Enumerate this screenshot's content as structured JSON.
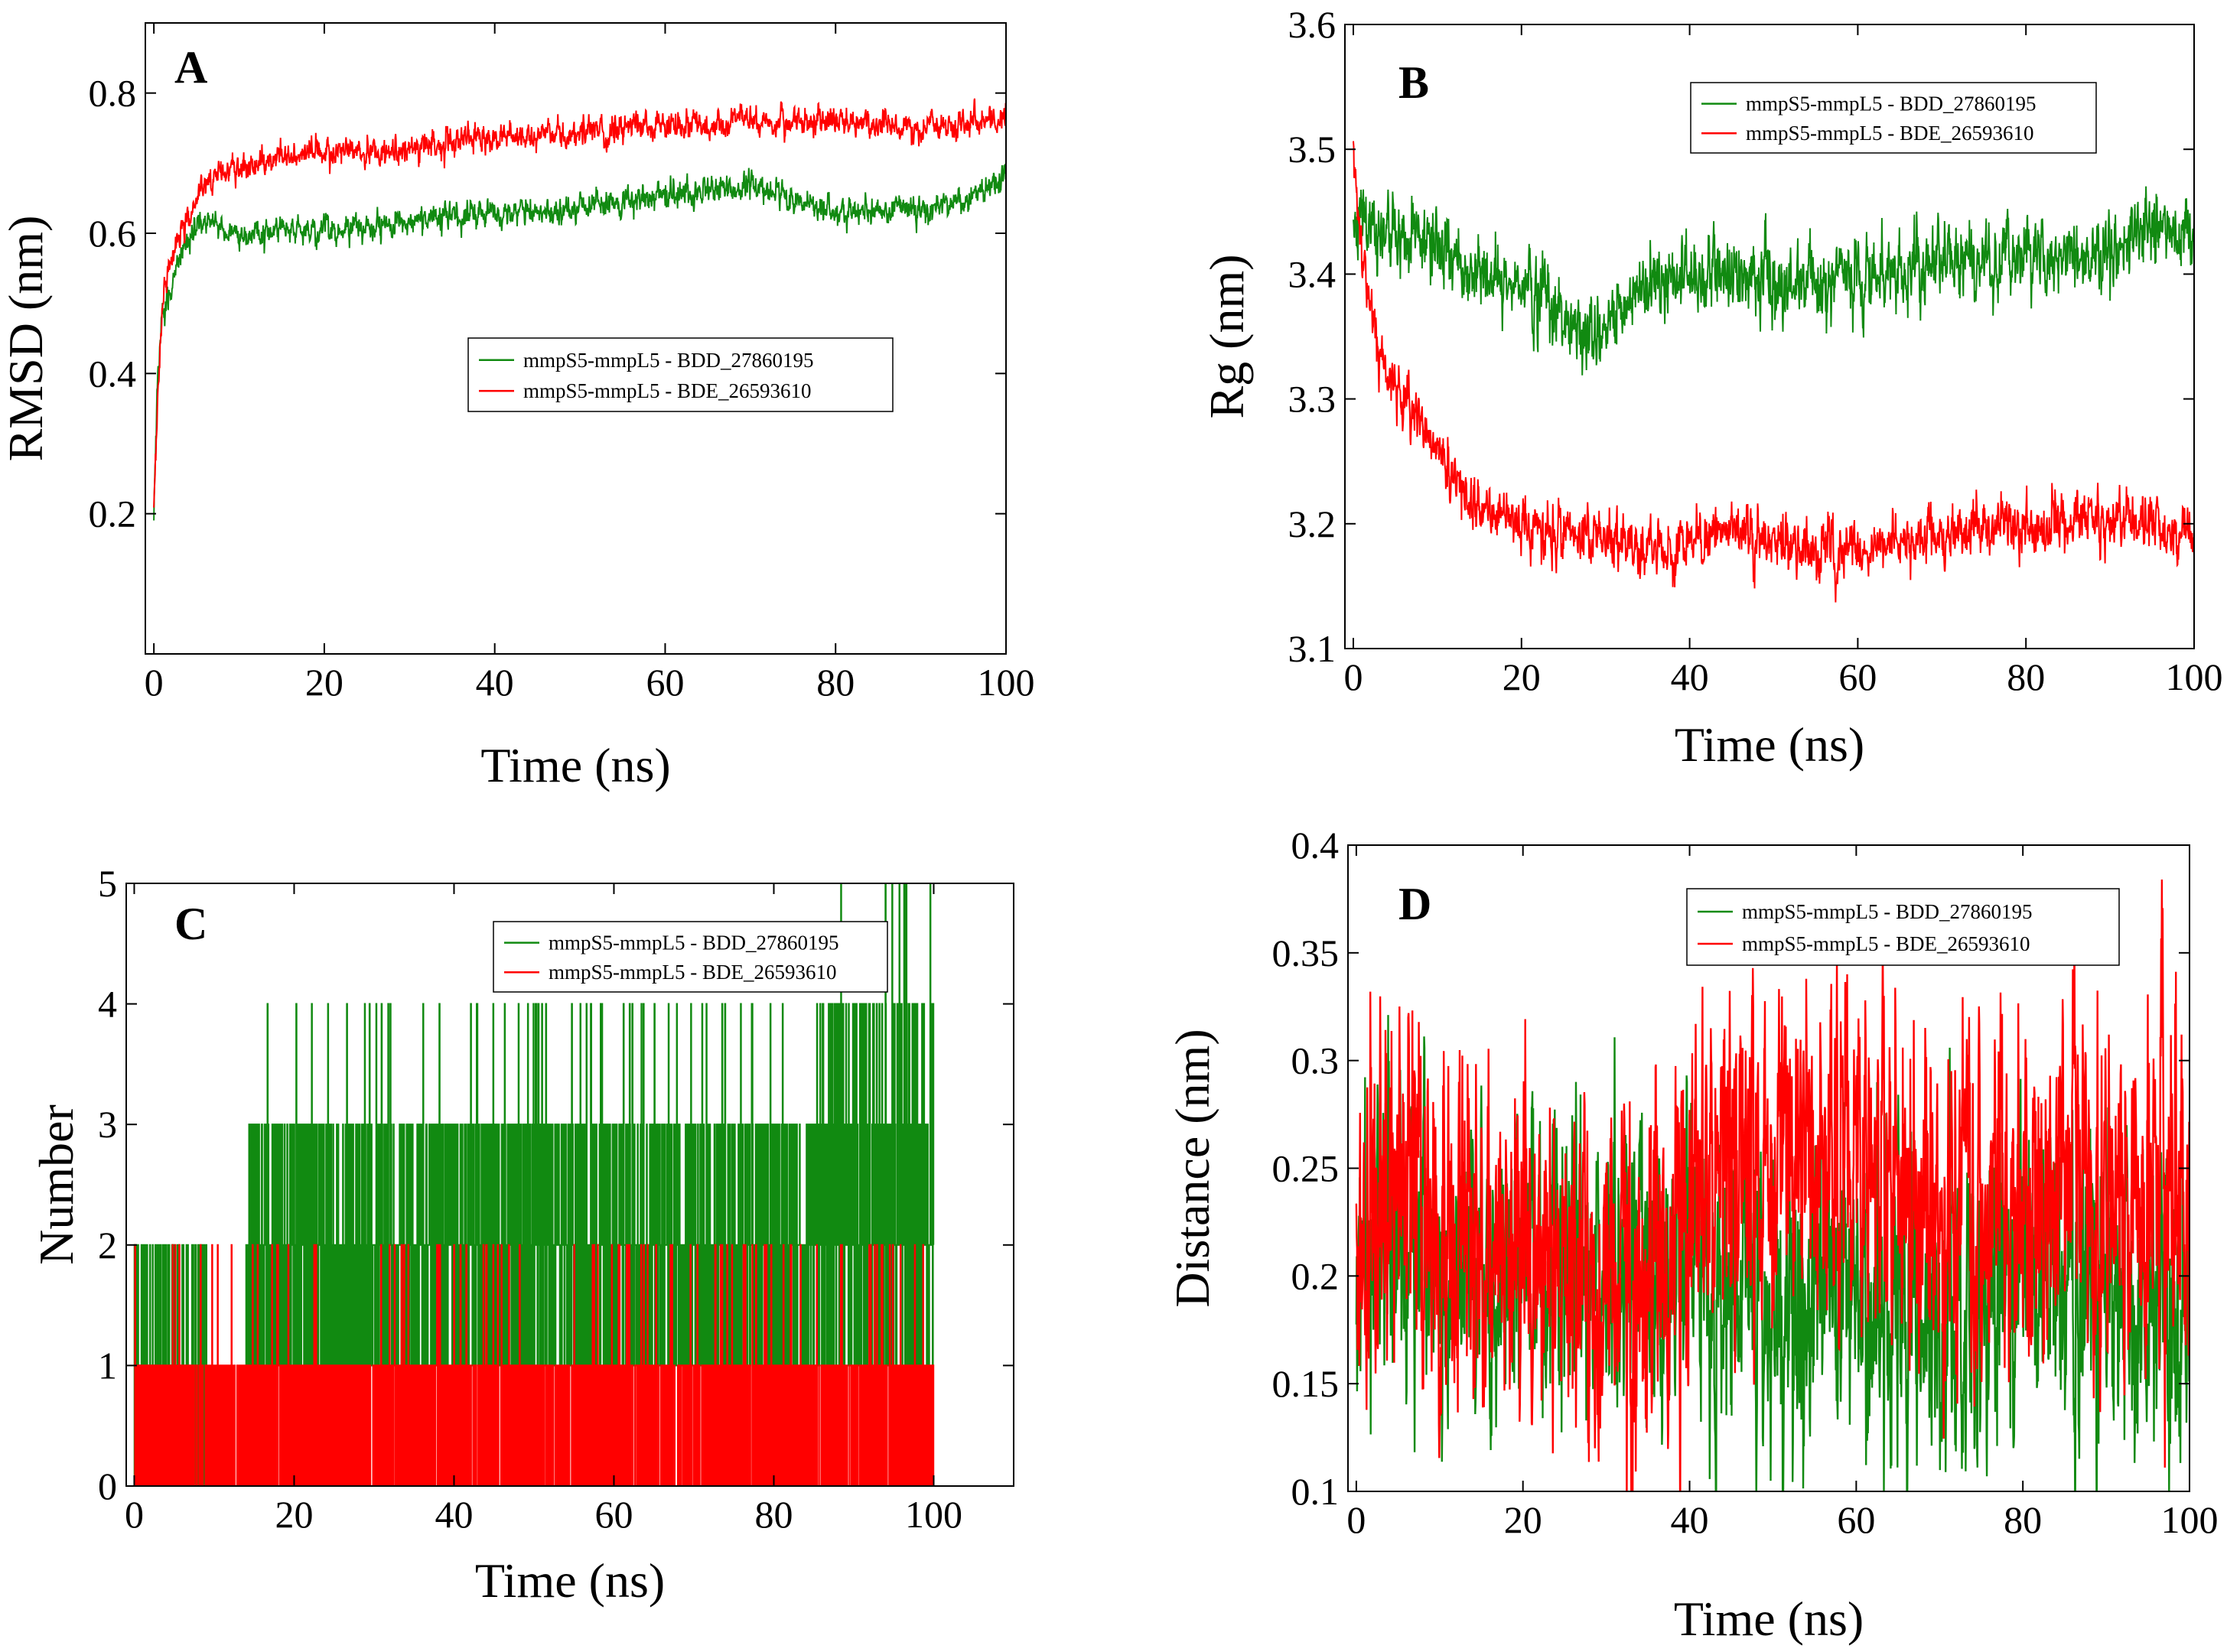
{
  "figure": {
    "description_labels": [
      "A",
      "B",
      "C",
      "D"
    ]
  },
  "colors": {
    "series_green": "#118a11",
    "series_red": "#ff0000",
    "series_red_dark": "#c0392b",
    "axis": "#000000",
    "legend_border": "#000000"
  },
  "chart_data": [
    {
      "panel": "A",
      "type": "line",
      "title": "",
      "xlabel": "Time (ns)",
      "ylabel": "RMSD (nm)",
      "xlim": [
        -1,
        100
      ],
      "ylim": [
        0,
        0.9
      ],
      "xticks": [
        0,
        20,
        40,
        60,
        80,
        100
      ],
      "xtick_labels": [
        "0",
        "20",
        "40",
        "60",
        "80",
        "100"
      ],
      "yticks": [
        0.2,
        0.4,
        0.6,
        0.8
      ],
      "ytick_labels": [
        "0.2",
        "0.4",
        "0.6",
        "0.8"
      ],
      "legend": [
        "mmpS5-mmpL5 - BDD_27860195",
        "mmpS5-mmpL5 - BDE_26593610"
      ],
      "legend_position": "middle-right",
      "series": [
        {
          "name": "mmpS5-mmpL5 - BDD_27860195",
          "color": "#118a11",
          "noise": 0.008,
          "x": [
            0,
            0.5,
            1,
            2,
            3,
            5,
            7,
            10,
            15,
            20,
            25,
            30,
            35,
            40,
            45,
            50,
            55,
            60,
            65,
            70,
            75,
            80,
            85,
            90,
            95,
            100
          ],
          "y": [
            0.2,
            0.4,
            0.48,
            0.52,
            0.57,
            0.61,
            0.62,
            0.59,
            0.61,
            0.605,
            0.61,
            0.615,
            0.625,
            0.625,
            0.63,
            0.64,
            0.645,
            0.655,
            0.66,
            0.665,
            0.65,
            0.635,
            0.63,
            0.635,
            0.645,
            0.68
          ]
        },
        {
          "name": "mmpS5-mmpL5 - BDE_26593610",
          "color": "#ff0000",
          "noise": 0.008,
          "x": [
            0,
            0.5,
            1,
            2,
            3,
            5,
            7,
            10,
            15,
            20,
            25,
            30,
            35,
            40,
            45,
            50,
            55,
            60,
            65,
            70,
            75,
            80,
            85,
            90,
            95,
            100
          ],
          "y": [
            0.2,
            0.38,
            0.5,
            0.56,
            0.6,
            0.65,
            0.68,
            0.695,
            0.71,
            0.72,
            0.715,
            0.72,
            0.73,
            0.735,
            0.74,
            0.745,
            0.75,
            0.755,
            0.755,
            0.76,
            0.755,
            0.765,
            0.755,
            0.75,
            0.755,
            0.76
          ]
        }
      ]
    },
    {
      "panel": "B",
      "type": "line",
      "title": "",
      "xlabel": "Time (ns)",
      "ylabel": "Rg (nm)",
      "xlim": [
        -1,
        100
      ],
      "ylim": [
        3.1,
        3.6
      ],
      "xticks": [
        0,
        20,
        40,
        60,
        80,
        100
      ],
      "xtick_labels": [
        "0",
        "20",
        "40",
        "60",
        "80",
        "100"
      ],
      "yticks": [
        3.1,
        3.2,
        3.3,
        3.4,
        3.5,
        3.6
      ],
      "ytick_labels": [
        "3.1",
        "3.2",
        "3.3",
        "3.4",
        "3.5",
        "3.6"
      ],
      "legend": [
        "mmpS5-mmpL5 - BDD_27860195",
        "mmpS5-mmpL5 - BDE_26593610"
      ],
      "legend_position": "top-right",
      "series": [
        {
          "name": "mmpS5-mmpL5 - BDD_27860195",
          "color": "#118a11",
          "noise": 0.012,
          "x": [
            0,
            2,
            5,
            10,
            15,
            20,
            25,
            28,
            30,
            35,
            40,
            45,
            50,
            55,
            60,
            65,
            70,
            75,
            80,
            85,
            90,
            95,
            100
          ],
          "y": [
            3.44,
            3.43,
            3.43,
            3.42,
            3.4,
            3.39,
            3.37,
            3.345,
            3.36,
            3.39,
            3.395,
            3.4,
            3.395,
            3.39,
            3.4,
            3.405,
            3.41,
            3.415,
            3.41,
            3.405,
            3.42,
            3.44,
            3.43
          ]
        },
        {
          "name": "mmpS5-mmpL5 - BDE_26593610",
          "color": "#ff0000",
          "noise": 0.009,
          "x": [
            0,
            0.5,
            1,
            2,
            3,
            5,
            8,
            10,
            13,
            16,
            20,
            25,
            30,
            35,
            38,
            40,
            45,
            50,
            55,
            60,
            65,
            70,
            75,
            80,
            85,
            90,
            95,
            100
          ],
          "y": [
            3.5,
            3.46,
            3.42,
            3.38,
            3.34,
            3.31,
            3.28,
            3.26,
            3.23,
            3.21,
            3.2,
            3.195,
            3.19,
            3.18,
            3.175,
            3.185,
            3.195,
            3.185,
            3.175,
            3.18,
            3.185,
            3.19,
            3.2,
            3.195,
            3.2,
            3.205,
            3.2,
            3.195
          ]
        }
      ]
    },
    {
      "panel": "C",
      "type": "line",
      "title": "",
      "xlabel": "Time (ns)",
      "ylabel": "Number",
      "xlim": [
        -1,
        110
      ],
      "ylim": [
        0,
        5
      ],
      "xticks": [
        0,
        20,
        40,
        60,
        80,
        100
      ],
      "xtick_labels": [
        "0",
        "20",
        "40",
        "60",
        "80",
        "100"
      ],
      "yticks": [
        0,
        1,
        2,
        3,
        4,
        5
      ],
      "ytick_labels": [
        "0",
        "1",
        "2",
        "3",
        "4",
        "5"
      ],
      "legend": [
        "mmpS5-mmpL5 - BDD_27860195",
        "mmpS5-mmpL5 - BDE_26593610"
      ],
      "legend_position": "top-right",
      "series": [
        {
          "name": "mmpS5-mmpL5 - BDD_27860195",
          "color": "#118a11",
          "segments": [
            {
              "x0": 0,
              "x1": 9,
              "levels": [
                0,
                1,
                2
              ],
              "weights": [
                0.5,
                0.35,
                0.15
              ]
            },
            {
              "x0": 14,
              "x1": 50,
              "levels": [
                1,
                2,
                3,
                4
              ],
              "weights": [
                0.32,
                0.45,
                0.21,
                0.02
              ]
            },
            {
              "x0": 50,
              "x1": 85,
              "levels": [
                1,
                2,
                3,
                4
              ],
              "weights": [
                0.3,
                0.45,
                0.22,
                0.03
              ]
            },
            {
              "x0": 85,
              "x1": 100,
              "levels": [
                1,
                2,
                3,
                4,
                5
              ],
              "weights": [
                0.22,
                0.35,
                0.27,
                0.14,
                0.02
              ]
            }
          ]
        },
        {
          "name": "mmpS5-mmpL5 - BDE_26593610",
          "color": "#ff0000",
          "segments": [
            {
              "x0": 0,
              "x1": 100,
              "levels": [
                0,
                1,
                2
              ],
              "weights": [
                0.55,
                0.42,
                0.03
              ]
            }
          ]
        }
      ]
    },
    {
      "panel": "D",
      "type": "line",
      "title": "",
      "xlabel": "Time (ns)",
      "ylabel": "Distance (nm)",
      "xlim": [
        -1,
        100
      ],
      "ylim": [
        0.1,
        0.4
      ],
      "xticks": [
        0,
        20,
        40,
        60,
        80,
        100
      ],
      "xtick_labels": [
        "0",
        "20",
        "40",
        "60",
        "80",
        "100"
      ],
      "yticks": [
        0.1,
        0.15,
        0.2,
        0.25,
        0.3,
        0.35,
        0.4
      ],
      "ytick_labels": [
        "0.1",
        "0.15",
        "0.2",
        "0.25",
        "0.3",
        "0.35",
        "0.4"
      ],
      "legend": [
        "mmpS5-mmpL5 - BDD_27860195",
        "mmpS5-mmpL5 - BDE_26593610"
      ],
      "legend_position": "top-right",
      "series": [
        {
          "name": "mmpS5-mmpL5 - BDD_27860195",
          "color": "#118a11",
          "noise": 0.028,
          "x": [
            0,
            5,
            10,
            20,
            30,
            38,
            40,
            45,
            50,
            60,
            70,
            80,
            90,
            100
          ],
          "y": [
            0.2,
            0.215,
            0.2,
            0.205,
            0.21,
            0.205,
            0.22,
            0.195,
            0.19,
            0.185,
            0.19,
            0.195,
            0.19,
            0.185
          ]
        },
        {
          "name": "mmpS5-mmpL5 - BDE_26593610",
          "color": "#ff0000",
          "noise": 0.032,
          "x": [
            0,
            3,
            6,
            10,
            15,
            20,
            30,
            38,
            40,
            45,
            50,
            55,
            60,
            65,
            70,
            80,
            90,
            100
          ],
          "y": [
            0.22,
            0.24,
            0.26,
            0.225,
            0.21,
            0.205,
            0.205,
            0.2,
            0.24,
            0.245,
            0.25,
            0.255,
            0.25,
            0.24,
            0.235,
            0.235,
            0.235,
            0.23
          ]
        }
      ]
    }
  ]
}
